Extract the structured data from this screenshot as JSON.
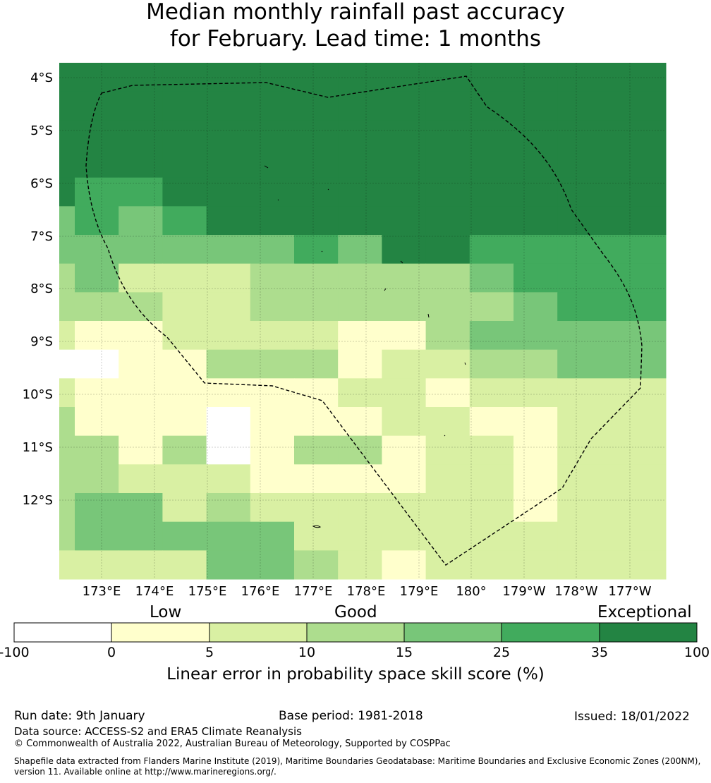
{
  "title": {
    "line1": "Median monthly rainfall past accuracy",
    "line2": "for February. Lead time: 1 months"
  },
  "map": {
    "lon_labels": [
      "173°E",
      "174°E",
      "175°E",
      "176°E",
      "177°E",
      "178°E",
      "179°E",
      "180°",
      "179°W",
      "178°W",
      "177°W"
    ],
    "lat_labels": [
      "4°S",
      "5°S",
      "6°S",
      "7°S",
      "8°S",
      "9°S",
      "10°S",
      "11°S",
      "12°S"
    ],
    "grid_rows": [
      "6666666666666",
      "6666666666666",
      "6666666666666",
      "6666666666666",
      "6556666666666",
      "4545666666666",
      "4444445466555",
      "3422233333455",
      "3332233333345",
      "2112222113444",
      "0011333122334",
      "2111111221222",
      "3111011122112",
      "3313013312212",
      "3322211112212",
      "3442322222212",
      "3444442222222",
      "2222443212222"
    ],
    "colors": [
      "#ffffff",
      "#ffffcc",
      "#d9f0a3",
      "#addd8e",
      "#78c679",
      "#41ab5d",
      "#238443"
    ]
  },
  "colorbar": {
    "categories": [
      "Low",
      "Good",
      "Exceptional"
    ],
    "ticks": [
      "-100",
      "0",
      "5",
      "10",
      "15",
      "25",
      "35",
      "100"
    ],
    "label": "Linear error in probability space skill score (%)"
  },
  "footer": {
    "run_date": "Run date: 9th January",
    "base_period": "Base period: 1981-2018",
    "issued": "Issued: 18/01/2022",
    "data_source": "Data source: ACCESS-S2 and ERA5 Climate Reanalysis",
    "copyright": "© Commonwealth of Australia 2022, Australian Bureau of Meteorology, Supported by COSPPac",
    "shapefile_line1": "Shapefile data extracted from Flanders Marine Institute (2019), Maritime Boundaries Geodatabase: Maritime Boundaries and Exclusive Economic Zones (200NM),",
    "shapefile_line2": "version 11. Available online at http://www.marineregions.org/."
  }
}
